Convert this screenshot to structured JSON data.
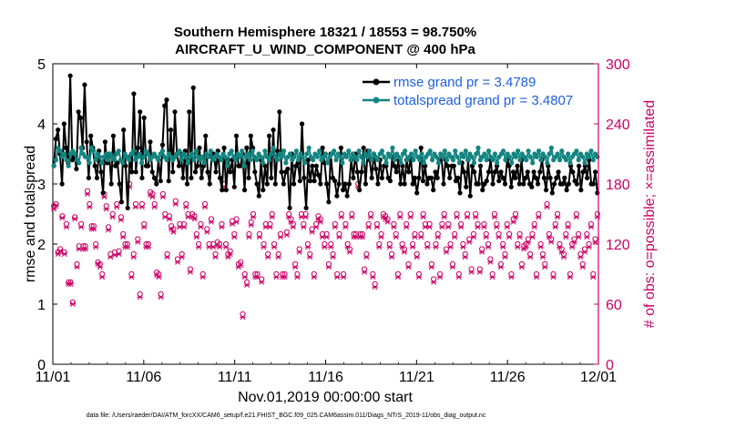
{
  "chart_data": {
    "type": "line",
    "title_line1": "Southern Hemisphere 18321 / 18553 = 98.750%",
    "title_line2": "AIRCRAFT_U_WIND_COMPONENT @ 400 hPa",
    "xlabel": "Nov.01,2019 00:00:00 start",
    "ylabel_left": "rmse and totalspread",
    "ylabel_right": "# of obs: o=possible; ×=assimilated",
    "x_tick_labels": [
      "11/01",
      "11/06",
      "11/11",
      "11/16",
      "11/21",
      "11/26",
      "12/01"
    ],
    "y_left_ticks": [
      "0",
      "1",
      "2",
      "3",
      "4",
      "5"
    ],
    "y_right_ticks": [
      "0",
      "60",
      "120",
      "180",
      "240",
      "300"
    ],
    "ylim_left": [
      0,
      5
    ],
    "ylim_right": [
      0,
      300
    ],
    "xlim_days": [
      0,
      30
    ],
    "footer": "data file: /Users/raeder/DAI/ATM_forcXX/CAM6_setup/f.e21.FHIST_BGC.f09_025.CAM6assim.011/Diags_NTrS_2019-11/obs_diag_output.nc",
    "series": [
      {
        "name": "rmse grand pr = 3.4789",
        "color": "#000000",
        "values": [
          3.3,
          3.75,
          3.9,
          3.5,
          3.0,
          4.0,
          3.6,
          3.35,
          4.8,
          3.4,
          3.5,
          3.25,
          4.2,
          4.1,
          3.6,
          4.65,
          3.7,
          3.1,
          3.8,
          3.6,
          3.3,
          3.1,
          3.55,
          3.2,
          2.85,
          3.7,
          3.35,
          3.5,
          3.0,
          3.8,
          3.3,
          3.35,
          3.0,
          2.7,
          3.9,
          3.3,
          2.6,
          3.45,
          3.2,
          4.5,
          3.2,
          3.6,
          4.2,
          3.1,
          4.1,
          3.3,
          3.3,
          3.7,
          3.2,
          3.1,
          3.0,
          3.4,
          3.05,
          3.65,
          4.3,
          4.4,
          3.05,
          3.9,
          3.2,
          4.2,
          3.5,
          3.3,
          3.5,
          3.1,
          3.55,
          3.0,
          4.2,
          3.1,
          4.6,
          3.2,
          3.3,
          3.6,
          3.1,
          3.3,
          3.8,
          3.2,
          3.0,
          3.5,
          3.5,
          3.2,
          3.55,
          3.1,
          2.9,
          3.6,
          2.9,
          3.4,
          3.2,
          3.4,
          2.95,
          3.8,
          3.3,
          3.3,
          3.5,
          2.9,
          3.6,
          3.1,
          3.8,
          3.6,
          3.2,
          3.0,
          2.8,
          3.4,
          2.9,
          3.3,
          3.0,
          3.8,
          3.1,
          3.9,
          3.0,
          3.55,
          4.2,
          3.2,
          3.0,
          3.2,
          3.25,
          2.6,
          3.5,
          3.0,
          3.3,
          3.35,
          3.05,
          4.0,
          3.1,
          2.6,
          3.4,
          3.05,
          3.3,
          3.05,
          3.3,
          3.15,
          3.0,
          3.6,
          3.35,
          3.0,
          2.7,
          3.5,
          3.1,
          3.05,
          2.8,
          3.0,
          3.6,
          2.9,
          3.0,
          2.8,
          3.0,
          3.4,
          3.1,
          3.5,
          3.2,
          2.9,
          3.2,
          3.6,
          3.0,
          3.55,
          3.4,
          3.1,
          3.5,
          3.25,
          3.0,
          3.4,
          3.1,
          3.3,
          3.3,
          3.1,
          3.05,
          3.45,
          3.3,
          3.2,
          3.4,
          3.0,
          3.3,
          3.0,
          3.4,
          3.2,
          3.45,
          3.0,
          3.1,
          2.85,
          3.1,
          3.6,
          3.05,
          3.3,
          3.0,
          3.1,
          3.1,
          2.9,
          3.2,
          3.1,
          3.4,
          3.45,
          3.0,
          3.4,
          3.3,
          3.1,
          3.3,
          3.3,
          3.05,
          3.1,
          2.85,
          3.35,
          3.2,
          2.95,
          3.4,
          2.8,
          3.3,
          3.2,
          3.0,
          3.0,
          3.3,
          2.9,
          3.0,
          3.05,
          3.2,
          3.4,
          3.0,
          3.2,
          3.3,
          3.05,
          3.2,
          3.1,
          3.0,
          3.4,
          3.3,
          2.95,
          3.2,
          3.1,
          3.3,
          3.0,
          3.4,
          3.0,
          3.1,
          3.2,
          3.0,
          2.95,
          3.2,
          3.1,
          3.0,
          3.2,
          3.4,
          3.1,
          2.9,
          3.3,
          3.1,
          2.85,
          3.0,
          3.1,
          3.2,
          3.0,
          3.0,
          3.1,
          2.9,
          3.0,
          3.3,
          3.2,
          3.05,
          3.0,
          3.3,
          2.9,
          3.2,
          3.3,
          3.1,
          3.4,
          3.0,
          3.0,
          3.2,
          2.85
        ]
      },
      {
        "name": "totalspread grand pr = 3.4807",
        "color": "#138580",
        "values": [
          3.3,
          3.4,
          3.6,
          3.55,
          3.45,
          3.5,
          3.4,
          3.3,
          3.5,
          3.55,
          3.5,
          3.4,
          3.35,
          3.6,
          3.5,
          3.45,
          3.45,
          3.35,
          3.6,
          3.55,
          3.4,
          3.5,
          3.45,
          3.35,
          3.45,
          3.5,
          3.4,
          3.5,
          3.45,
          3.4,
          3.5,
          3.55,
          3.4,
          3.35,
          3.5,
          3.45,
          3.4,
          3.5,
          3.55,
          3.4,
          3.45,
          3.5,
          3.35,
          3.45,
          3.55,
          3.5,
          3.4,
          3.45,
          3.5,
          3.45,
          3.4,
          3.5,
          3.55,
          3.45,
          3.4,
          3.5,
          3.45,
          3.4,
          3.45,
          3.5,
          3.55,
          3.4,
          3.5,
          3.45,
          3.35,
          3.45,
          3.5,
          3.4,
          3.55,
          3.45,
          3.4,
          3.45,
          3.35,
          3.5,
          3.45,
          3.55,
          3.4,
          3.45,
          3.5,
          3.45,
          3.4,
          3.5,
          3.45,
          3.3,
          3.5,
          3.55,
          3.45,
          3.4,
          3.5,
          3.45,
          3.55,
          3.3,
          3.45,
          3.5,
          3.4,
          3.55,
          3.45,
          3.4,
          3.5,
          3.45,
          3.35,
          3.55,
          3.45,
          3.4,
          3.5,
          3.6,
          3.45,
          3.4,
          3.5,
          3.45,
          3.55,
          3.35,
          3.45,
          3.5,
          3.4,
          3.45,
          3.55,
          3.4,
          3.5,
          3.45,
          3.35,
          3.5,
          3.6,
          3.45,
          3.4,
          3.5,
          3.45,
          3.55,
          3.4,
          3.45,
          3.5,
          3.35,
          3.45,
          3.5,
          3.55,
          3.4,
          3.5,
          3.45,
          3.35,
          3.5,
          3.45,
          3.55,
          3.4,
          3.5,
          3.45,
          3.4,
          3.55,
          3.45,
          3.35,
          3.5,
          3.45,
          3.55,
          3.4,
          3.5,
          3.45,
          3.4,
          3.5,
          3.55,
          3.45,
          3.35,
          3.5,
          3.45,
          3.6,
          3.4,
          3.5,
          3.45,
          3.35,
          3.5,
          3.55,
          3.4,
          3.45,
          3.5,
          3.4,
          3.55,
          3.45,
          3.4,
          3.5,
          3.35,
          3.45,
          3.5,
          3.55,
          3.4,
          3.5,
          3.45,
          3.35,
          3.5,
          3.45,
          3.55,
          3.4,
          3.5,
          3.45,
          3.4,
          3.55,
          3.45,
          3.35,
          3.5,
          3.45,
          3.55,
          3.4,
          3.5,
          3.45,
          3.35,
          3.5,
          3.6,
          3.4,
          3.45,
          3.5,
          3.4,
          3.55,
          3.45,
          3.4,
          3.5,
          3.35,
          3.45,
          3.5,
          3.55,
          3.4,
          3.5,
          3.45,
          3.35,
          3.5,
          3.45,
          3.55,
          3.4,
          3.5,
          3.45,
          3.4,
          3.55,
          3.45,
          3.35,
          3.5,
          3.45,
          3.55,
          3.4,
          3.5,
          3.45,
          3.35,
          3.5,
          3.6,
          3.4,
          3.45,
          3.5,
          3.4,
          3.55,
          3.45,
          3.4,
          3.5,
          3.35,
          3.45,
          3.5,
          3.55,
          3.4,
          3.5,
          3.45,
          3.35,
          3.5,
          3.45,
          3.55,
          3.4,
          3.5,
          3.45
        ]
      }
    ],
    "obs_possible": [
      158,
      160,
      112,
      115,
      148,
      112,
      140,
      82,
      82,
      62,
      147,
      100,
      118,
      140,
      118,
      118,
      173,
      160,
      138,
      138,
      120,
      102,
      100,
      90,
      170,
      158,
      137,
      110,
      150,
      112,
      160,
      113,
      147,
      130,
      120,
      120,
      180,
      90,
      110,
      160,
      125,
      70,
      160,
      140,
      120,
      120,
      172,
      170,
      160,
      92,
      90,
      70,
      170,
      150,
      110,
      148,
      138,
      135,
      163,
      105,
      140,
      110,
      140,
      160,
      150,
      95,
      150,
      148,
      130,
      120,
      140,
      90,
      160,
      135,
      120,
      145,
      120,
      110,
      122,
      120,
      140,
      180,
      120,
      110,
      113,
      143,
      130,
      145,
      100,
      102,
      50,
      90,
      82,
      130,
      142,
      150,
      90,
      90,
      130,
      85,
      120,
      140,
      110,
      140,
      150,
      120,
      90,
      110,
      130,
      90,
      90,
      132,
      150,
      145,
      140,
      100,
      90,
      115,
      150,
      140,
      150,
      120,
      110,
      135,
      90,
      140,
      148,
      145,
      130,
      120,
      130,
      100,
      120,
      110,
      140,
      90,
      130,
      150,
      90,
      140,
      120,
      115,
      150,
      130,
      130,
      180,
      130,
      130,
      95,
      110,
      140,
      150,
      90,
      80,
      140,
      120,
      130,
      150,
      148,
      145,
      120,
      110,
      140,
      130,
      90,
      150,
      120,
      115,
      140,
      100,
      150,
      120,
      130,
      110,
      90,
      130,
      150,
      140,
      120,
      140,
      100,
      85,
      120,
      130,
      90,
      140,
      150,
      115,
      140,
      120,
      100,
      130,
      150,
      90,
      140,
      120,
      110,
      150,
      125,
      95,
      130,
      150,
      140,
      95,
      115,
      140,
      130,
      120,
      105,
      90,
      150,
      140,
      130,
      100,
      120,
      110,
      140,
      130,
      90,
      145,
      150,
      120,
      130,
      100,
      118,
      120,
      125,
      110,
      130,
      140,
      90,
      150,
      120,
      110,
      100,
      160,
      130,
      125,
      90,
      140,
      150,
      120,
      115,
      110,
      130,
      140,
      90,
      120,
      125,
      150,
      130,
      110,
      100,
      115,
      130,
      120,
      140,
      90,
      125,
      150
    ],
    "obs_assimilated": [
      155,
      158,
      110,
      113,
      146,
      110,
      137,
      80,
      80,
      60,
      145,
      97,
      115,
      137,
      115,
      115,
      170,
      157,
      135,
      135,
      117,
      100,
      97,
      87,
      167,
      155,
      134,
      107,
      147,
      109,
      157,
      110,
      144,
      127,
      117,
      117,
      177,
      87,
      107,
      157,
      122,
      67,
      157,
      137,
      117,
      117,
      169,
      167,
      157,
      89,
      87,
      67,
      167,
      147,
      107,
      145,
      135,
      132,
      160,
      102,
      137,
      107,
      137,
      157,
      147,
      92,
      147,
      145,
      127,
      117,
      137,
      87,
      157,
      132,
      117,
      142,
      117,
      107,
      119,
      117,
      137,
      177,
      117,
      107,
      110,
      140,
      127,
      142,
      97,
      99,
      47,
      87,
      79,
      127,
      139,
      147,
      87,
      87,
      127,
      82,
      117,
      137,
      107,
      137,
      147,
      117,
      87,
      107,
      127,
      87,
      87,
      129,
      147,
      142,
      137,
      97,
      87,
      112,
      147,
      137,
      147,
      117,
      107,
      132,
      87,
      137,
      145,
      142,
      127,
      117,
      127,
      97,
      117,
      107,
      137,
      87,
      127,
      147,
      87,
      137,
      117,
      112,
      147,
      127,
      127,
      177,
      127,
      127,
      92,
      107,
      137,
      147,
      87,
      77,
      137,
      117,
      127,
      147,
      145,
      142,
      117,
      107,
      137,
      127,
      87,
      147,
      117,
      112,
      137,
      97,
      147,
      117,
      127,
      107,
      87,
      127,
      147,
      137,
      117,
      137,
      97,
      82,
      117,
      127,
      87,
      137,
      147,
      112,
      137,
      117,
      97,
      127,
      147,
      87,
      137,
      117,
      107,
      147,
      122,
      92,
      127,
      147,
      137,
      92,
      112,
      137,
      127,
      117,
      102,
      87,
      147,
      137,
      127,
      97,
      117,
      107,
      137,
      127,
      87,
      142,
      147,
      117,
      127,
      97,
      115,
      117,
      122,
      107,
      127,
      137,
      87,
      147,
      117,
      107,
      97,
      157,
      127,
      122,
      87,
      137,
      147,
      117,
      112,
      107,
      127,
      137,
      87,
      117,
      122,
      147,
      127,
      107,
      97,
      112,
      127,
      117,
      137,
      87,
      122,
      147
    ]
  }
}
